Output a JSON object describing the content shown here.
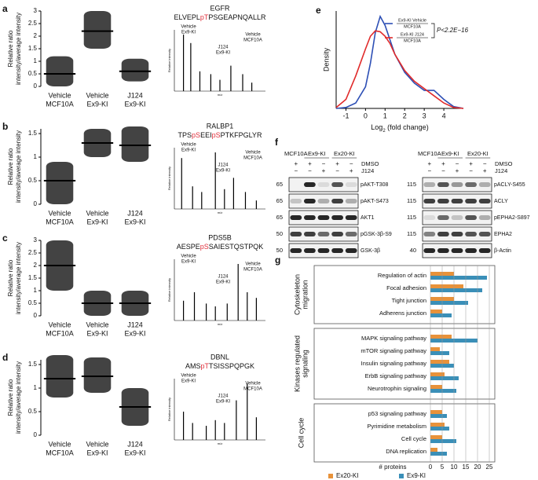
{
  "chart_data": [
    {
      "type": "dot_strip",
      "panel": "a",
      "ylabel": [
        "Relative ratio",
        "intensity/average intensity"
      ],
      "categories": [
        [
          "Vehicle",
          "MCF10A"
        ],
        [
          "Vehicle",
          "Ex9-KI"
        ],
        [
          "J124",
          "Ex9-KI"
        ]
      ],
      "category_colors": [
        "#e8603c",
        "#2a8fc4",
        "#8a3fa0"
      ],
      "values": [
        0.5,
        2.2,
        0.6
      ],
      "low": [
        0,
        1.5,
        0.2
      ],
      "high": [
        1.2,
        3.0,
        1.1
      ],
      "ylim": [
        0,
        3
      ],
      "yticks": [
        0,
        0.5,
        1,
        1.5,
        2,
        2.5,
        3
      ]
    },
    {
      "type": "spectrum",
      "title": "EGFR",
      "peptide": [
        {
          "text": "ELVEPL"
        },
        {
          "text": "pT",
          "color": "#e0303c"
        },
        {
          "text": "PSGEAPNQALLR"
        }
      ],
      "ylabel": "Relative intensity",
      "xlabel": "m/z",
      "x": [
        0.1,
        0.18,
        0.28,
        0.4,
        0.5,
        0.62,
        0.75,
        0.85
      ],
      "values": [
        1.0,
        0.85,
        0.35,
        0.3,
        0.2,
        0.45,
        0.3,
        0.15
      ],
      "annotations": [
        {
          "lines": [
            "Vehicle",
            "Ex9-KI"
          ],
          "color": "#2a8fc4"
        },
        {
          "lines": [
            "J124",
            "Ex9-KI"
          ],
          "color": "#8a3fa0"
        },
        {
          "lines": [
            "Vehicle",
            "MCF10A"
          ],
          "color": "#e8603c"
        }
      ]
    },
    {
      "type": "dot_strip",
      "panel": "b",
      "ylabel": [
        "Relative ratio",
        "intensity/average intensity"
      ],
      "categories": [
        [
          "Vehicle",
          "MCF10A"
        ],
        [
          "Vehicle",
          "Ex9-KI"
        ],
        [
          "J124",
          "Ex9-KI"
        ]
      ],
      "category_colors": [
        "#e8603c",
        "#2a8fc4",
        "#8a3fa0"
      ],
      "values": [
        0.5,
        1.3,
        1.25
      ],
      "low": [
        0,
        1.0,
        0.9
      ],
      "high": [
        0.9,
        1.6,
        1.65
      ],
      "ylim": [
        0,
        1.6
      ],
      "yticks": [
        0,
        0.5,
        1,
        1.5
      ]
    },
    {
      "type": "spectrum",
      "title": "RALBP1",
      "peptide": [
        {
          "text": "TPS"
        },
        {
          "text": "pS",
          "color": "#e0303c"
        },
        {
          "text": "EEI"
        },
        {
          "text": "pS",
          "color": "#e0303c"
        },
        {
          "text": "PTKFPGLYR"
        }
      ],
      "ylabel": "Relative intensity",
      "xlabel": "m/z",
      "x": [
        0.08,
        0.2,
        0.3,
        0.45,
        0.55,
        0.65,
        0.78,
        0.9
      ],
      "values": [
        0.9,
        0.4,
        0.3,
        1.0,
        0.35,
        0.55,
        0.3,
        0.15
      ],
      "annotations": [
        {
          "lines": [
            "Vehicle",
            "Ex9-KI"
          ],
          "color": "#2a8fc4"
        },
        {
          "lines": [
            "J124",
            "Ex9-KI"
          ],
          "color": "#8a3fa0"
        },
        {
          "lines": [
            "Vehicle",
            "MCF10A"
          ],
          "color": "#e8603c"
        }
      ]
    },
    {
      "type": "dot_strip",
      "panel": "c",
      "ylabel": [
        "Relative ratio",
        "intensity/average intensity"
      ],
      "categories": [
        [
          "Vehicle",
          "MCF10A"
        ],
        [
          "Vehicle",
          "Ex9-KI"
        ],
        [
          "J124",
          "Ex9-KI"
        ]
      ],
      "category_colors": [
        "#e8603c",
        "#2a8fc4",
        "#8a3fa0"
      ],
      "values": [
        2.0,
        0.5,
        0.5
      ],
      "low": [
        1.0,
        0,
        0
      ],
      "high": [
        3.0,
        1.0,
        1.0
      ],
      "ylim": [
        0,
        3
      ],
      "yticks": [
        0,
        0.5,
        1,
        1.5,
        2,
        2.5,
        3
      ]
    },
    {
      "type": "spectrum",
      "title": "PDS5B",
      "peptide": [
        {
          "text": "AESPE"
        },
        {
          "text": "pS",
          "color": "#e0303c"
        },
        {
          "text": "SAIESTQSTPQK"
        }
      ],
      "ylabel": "Relative intensity",
      "xlabel": "m/z",
      "x": [
        0.1,
        0.22,
        0.35,
        0.45,
        0.58,
        0.7,
        0.8,
        0.9
      ],
      "values": [
        0.35,
        0.5,
        0.3,
        0.25,
        0.3,
        1.0,
        0.5,
        0.4
      ],
      "annotations": [
        {
          "lines": [
            "Vehicle",
            "Ex9-KI"
          ],
          "color": "#2a8fc4"
        },
        {
          "lines": [
            "J124",
            "Ex9-KI"
          ],
          "color": "#8a3fa0"
        },
        {
          "lines": [
            "Vehicle",
            "MCF10A"
          ],
          "color": "#e8603c"
        }
      ]
    },
    {
      "type": "dot_strip",
      "panel": "d",
      "ylabel": [
        "Relative ratio",
        "intensity/average intensity"
      ],
      "categories": [
        [
          "Vehicle",
          "MCF10A"
        ],
        [
          "Vehicle",
          "Ex9-KI"
        ],
        [
          "J124",
          "Ex9-KI"
        ]
      ],
      "category_colors": [
        "#e8603c",
        "#2a8fc4",
        "#8a3fa0"
      ],
      "values": [
        1.2,
        1.25,
        0.6
      ],
      "low": [
        0.8,
        0.9,
        0.2
      ],
      "high": [
        1.7,
        1.65,
        1.0
      ],
      "ylim": [
        0,
        1.6
      ],
      "yticks": [
        0,
        0.5,
        1,
        1.5
      ]
    },
    {
      "type": "spectrum",
      "title": "DBNL",
      "peptide": [
        {
          "text": "AMS"
        },
        {
          "text": "pT",
          "color": "#e0303c"
        },
        {
          "text": "TSISSPQPGK"
        }
      ],
      "ylabel": "Relative intensity",
      "xlabel": "m/z",
      "x": [
        0.1,
        0.2,
        0.35,
        0.45,
        0.55,
        0.68,
        0.8,
        0.9
      ],
      "values": [
        0.5,
        0.3,
        0.25,
        0.35,
        0.3,
        0.7,
        1.0,
        0.4
      ],
      "annotations": [
        {
          "lines": [
            "Vehicle",
            "Ex9-KI"
          ],
          "color": "#2a8fc4"
        },
        {
          "lines": [
            "J124",
            "Ex9-KI"
          ],
          "color": "#8a3fa0"
        },
        {
          "lines": [
            "Vehicle",
            "MCF10A"
          ],
          "color": "#e8603c"
        }
      ]
    },
    {
      "type": "line",
      "panel": "e",
      "ylabel": "Density",
      "xlabel": {
        "base": "Log",
        "sub": "2",
        "rest": " (fold change)"
      },
      "annotation": "P<2.2E−16",
      "x": [
        -1.5,
        -1,
        -0.5,
        0,
        0.25,
        0.5,
        0.75,
        1,
        1.25,
        1.5,
        2,
        2.5,
        3,
        3.5,
        4,
        4.5,
        5
      ],
      "xlim": [
        -1.5,
        5
      ],
      "xticks": [
        -1,
        0,
        1,
        2,
        3,
        4
      ],
      "ylim": [
        0,
        5.4
      ],
      "series": [
        {
          "name": "Ex9-KI Vehicle",
          "denominator": "MCF10A",
          "color": "#2d4fb5",
          "values": [
            0,
            0.05,
            0.3,
            1.2,
            2.5,
            4.2,
            5.1,
            4.6,
            3.8,
            3.0,
            2.0,
            1.4,
            1.0,
            1.0,
            0.5,
            0.1,
            0
          ]
        },
        {
          "name": "Ex9-KI J124",
          "denominator": "MCF10A",
          "color": "#e02a2a",
          "values": [
            0.05,
            0.5,
            1.8,
            3.3,
            4.0,
            4.3,
            4.25,
            4.0,
            3.6,
            3.0,
            2.1,
            1.5,
            1.1,
            0.7,
            0.3,
            0.05,
            0
          ]
        }
      ]
    },
    {
      "type": "bar",
      "orientation": "horizontal",
      "panel": "g",
      "xlabel": "# proteins",
      "xlim": [
        0,
        25
      ],
      "xticks": [
        0,
        5,
        10,
        15,
        20,
        25
      ],
      "grid": true,
      "groups": [
        {
          "label": [
            "Cytoskeleton",
            "migration"
          ],
          "categories": [
            "Regulation of actin",
            "Focal adhesion",
            "Tight junction",
            "Adherens junction"
          ]
        },
        {
          "label": [
            "Kinases regulated",
            "signaling"
          ],
          "categories": [
            "MAPK signaling pathway",
            "mTOR signaling pathway",
            "Insulin signaling pathway",
            "ErbB signaling pathway",
            "Neurotrophin signaling"
          ]
        },
        {
          "label": [
            "Cell cycle"
          ],
          "categories": [
            "p53 signaling pathway",
            "Pyrimidine metabolism",
            "Cell cycle",
            "DNA replication"
          ]
        }
      ],
      "series": [
        {
          "name": "Ex20-KI",
          "color": "#e8923a",
          "values": [
            10,
            14,
            10,
            5,
            9,
            4,
            8,
            6,
            5,
            5,
            6,
            5,
            3
          ]
        },
        {
          "name": "Ex9-KI",
          "color": "#3a8fb8",
          "values": [
            24,
            22,
            16,
            9,
            20,
            8,
            10,
            12,
            11,
            7,
            8,
            11,
            7
          ]
        }
      ]
    }
  ],
  "blots": {
    "panel": "f",
    "treatments": [
      "DMSO",
      "J124"
    ],
    "left": {
      "groups": [
        "MCF10A",
        "Ex9-KI",
        "Ex20-KI"
      ],
      "dmso": [
        "+",
        "+",
        "−",
        "+",
        "−"
      ],
      "j124": [
        "−",
        "−",
        "+",
        "−",
        "+"
      ],
      "rows": [
        {
          "marker": "65",
          "label": "pAKT-T308",
          "bands": [
            0,
            0.9,
            0.1,
            0.7,
            0.1
          ]
        },
        {
          "marker": "65",
          "label": "pAKT-S473",
          "bands": [
            0.2,
            0.9,
            0.3,
            0.8,
            0.3
          ]
        },
        {
          "marker": "65",
          "label": "AKT1",
          "bands": [
            0.9,
            0.9,
            0.9,
            0.9,
            0.9
          ]
        },
        {
          "marker": "50",
          "label": "pGSK-3β-S9",
          "bands": [
            0.8,
            0.8,
            0.6,
            0.8,
            0.6
          ]
        },
        {
          "marker": "50",
          "label": "GSK-3β",
          "bands": [
            0.9,
            0.9,
            0.9,
            0.9,
            0.9
          ]
        }
      ]
    },
    "right": {
      "groups": [
        "MCF10A",
        "Ex9-KI",
        "Ex20-KI"
      ],
      "dmso": [
        "+",
        "+",
        "−",
        "+",
        "−"
      ],
      "j124": [
        "−",
        "−",
        "+",
        "−",
        "+"
      ],
      "rows": [
        {
          "marker": "115",
          "label": "pACLY-S455",
          "bands": [
            0.3,
            0.7,
            0.4,
            0.6,
            0.3
          ]
        },
        {
          "marker": "115",
          "label": "ACLY",
          "bands": [
            0.8,
            0.8,
            0.8,
            0.8,
            0.8
          ]
        },
        {
          "marker": "115",
          "label": "pEPHA2-S897",
          "bands": [
            0.1,
            0.6,
            0.2,
            0.7,
            0.3
          ]
        },
        {
          "marker": "115",
          "label": "EPHA2",
          "bands": [
            0.5,
            0.8,
            0.8,
            0.7,
            0.7
          ]
        },
        {
          "marker": "40",
          "label": "β-Actin",
          "bands": [
            0.9,
            0.9,
            0.9,
            0.9,
            0.9
          ]
        }
      ]
    }
  }
}
